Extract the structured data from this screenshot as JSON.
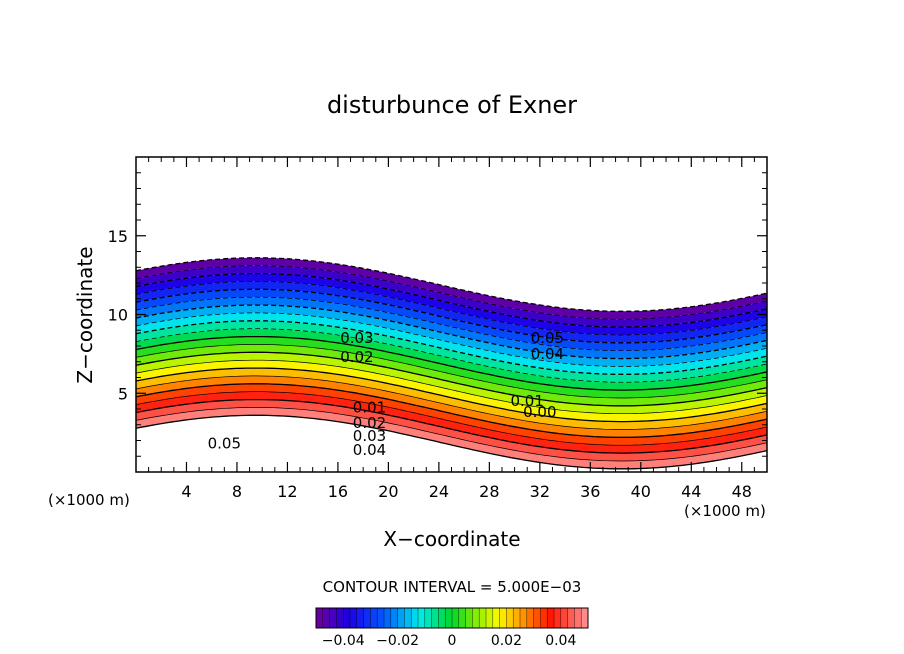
{
  "chart_data": {
    "type": "contour",
    "title": "disturbunce of Exner",
    "xlabel": "X−coordinate",
    "ylabel": "Z−coordinate",
    "x_unit_left": "(×1000 m)",
    "x_unit_right": "(×1000 m)",
    "xlim": [
      0,
      50
    ],
    "ylim": [
      0,
      20
    ],
    "x_ticks": [
      4,
      8,
      12,
      16,
      20,
      24,
      28,
      32,
      36,
      40,
      44,
      48
    ],
    "y_ticks": [
      5,
      10,
      15
    ],
    "grid": false,
    "terrain": {
      "base_height": 6.9,
      "amplitude": 1.7,
      "peak_x": 9.5,
      "wavelength": 58,
      "vertical_gradient": -0.01
    },
    "field_range": [
      -0.05,
      0.05
    ],
    "contour_interval": 0.005,
    "contour_levels": [
      -0.05,
      -0.045,
      -0.04,
      -0.035,
      -0.03,
      -0.025,
      -0.02,
      -0.015,
      -0.01,
      -0.005,
      0.0,
      0.005,
      0.01,
      0.015,
      0.02,
      0.025,
      0.03,
      0.035,
      0.04,
      0.045,
      0.05
    ],
    "contour_labels": [
      {
        "text": "0.05",
        "x": 32.6,
        "y": 8.5
      },
      {
        "text": "0.04",
        "x": 32.6,
        "y": 7.5
      },
      {
        "text": "0.03",
        "x": 17.5,
        "y": 8.5
      },
      {
        "text": "0.02",
        "x": 17.5,
        "y": 7.3
      },
      {
        "text": "0.01",
        "x": 31.0,
        "y": 4.5
      },
      {
        "text": "0.00",
        "x": 32.0,
        "y": 3.8
      },
      {
        "text": "0.01",
        "x": 18.5,
        "y": 4.1
      },
      {
        "text": "0.02",
        "x": 18.5,
        "y": 3.1
      },
      {
        "text": "0.03",
        "x": 18.5,
        "y": 2.3
      },
      {
        "text": "0.04",
        "x": 18.5,
        "y": 1.4
      },
      {
        "text": "0.05",
        "x": 7.0,
        "y": 1.8
      }
    ],
    "footer": "CONTOUR INTERVAL =  5.000E−03",
    "colorbar": {
      "ticks": [
        -0.04,
        -0.02,
        0,
        0.02,
        0.04
      ],
      "tick_labels": [
        "−0.04",
        "−0.02",
        "0",
        "0.02",
        "0.04"
      ],
      "range": [
        -0.05,
        0.05
      ]
    }
  }
}
